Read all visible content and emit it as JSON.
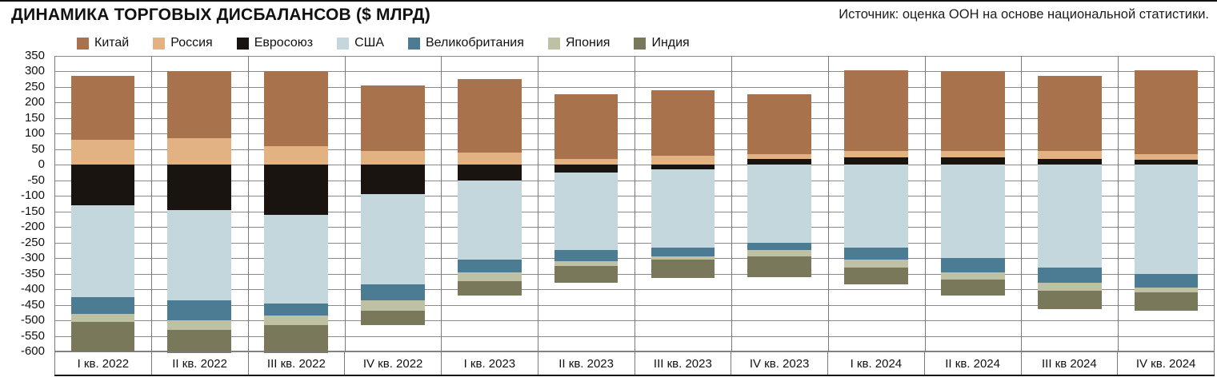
{
  "header": {
    "title": "ДИНАМИКА ТОРГОВЫХ ДИСБАЛАНСОВ ($ МЛРД)",
    "source": "Источник: оценка ООН на основе национальной статистики."
  },
  "chart_data": {
    "type": "bar",
    "stacked": true,
    "title": "ДИНАМИКА ТОРГОВЫХ ДИСБАЛАНСОВ ($ МЛРД)",
    "source": "Источник: оценка ООН на основе национальной статистики.",
    "xlabel": "",
    "ylabel": "$ млрд",
    "grid": true,
    "legend_position": "top",
    "ylim": [
      -600,
      350
    ],
    "y_ticks": [
      350,
      300,
      250,
      200,
      150,
      100,
      50,
      0,
      -50,
      -100,
      -150,
      -200,
      -250,
      -300,
      -350,
      -400,
      -450,
      -500,
      -550,
      -600
    ],
    "categories": [
      "I кв. 2022",
      "II кв. 2022",
      "III кв. 2022",
      "IV кв. 2022",
      "I кв. 2023",
      "II кв. 2023",
      "III кв. 2023",
      "IV кв. 2023",
      "I кв. 2024",
      "II кв. 2024",
      "III кв 2024",
      "IV кв. 2024"
    ],
    "series": [
      {
        "name": "Китай",
        "color": "#A8724D",
        "values": [
          205,
          215,
          240,
          210,
          235,
          210,
          210,
          195,
          260,
          255,
          240,
          270
        ]
      },
      {
        "name": "Россия",
        "color": "#E2B283",
        "values": [
          80,
          85,
          60,
          45,
          40,
          18,
          30,
          15,
          20,
          20,
          25,
          20
        ]
      },
      {
        "name": "Евросоюз",
        "color": "#191410",
        "values": [
          -130,
          -145,
          -160,
          -95,
          -50,
          -25,
          -15,
          18,
          25,
          25,
          20,
          15
        ]
      },
      {
        "name": "США",
        "color": "#C4D7DD",
        "values": [
          -295,
          -290,
          -285,
          -290,
          -255,
          -250,
          -250,
          -250,
          -265,
          -300,
          -330,
          -350
        ]
      },
      {
        "name": "Великобритания",
        "color": "#4C7B94",
        "values": [
          -55,
          -65,
          -40,
          -50,
          -40,
          -35,
          -30,
          -25,
          -40,
          -45,
          -50,
          -45
        ]
      },
      {
        "name": "Япония",
        "color": "#BFC1A5",
        "values": [
          -25,
          -30,
          -30,
          -35,
          -30,
          -15,
          -10,
          -20,
          -25,
          -25,
          -25,
          -15
        ]
      },
      {
        "name": "Индия",
        "color": "#7A785A",
        "values": [
          -95,
          -75,
          -90,
          -45,
          -45,
          -55,
          -60,
          -65,
          -55,
          -50,
          -60,
          -60
        ]
      }
    ]
  }
}
